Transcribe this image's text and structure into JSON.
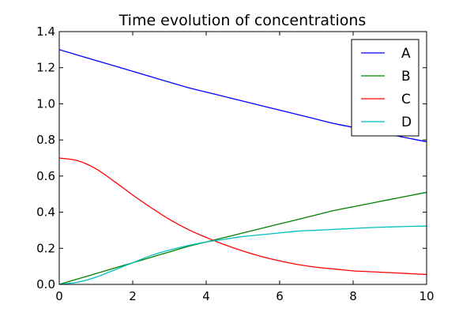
{
  "chart_data": {
    "type": "line",
    "title": "Time evolution of concentrations",
    "xlabel": "",
    "ylabel": "",
    "xlim": [
      0,
      10
    ],
    "ylim": [
      0,
      1.4
    ],
    "xticks": [
      0,
      2,
      4,
      6,
      8,
      10
    ],
    "yticks": [
      0.0,
      0.2,
      0.4,
      0.6,
      0.8,
      1.0,
      1.2,
      1.4
    ],
    "xtick_labels": [
      "0",
      "2",
      "4",
      "6",
      "8",
      "10"
    ],
    "ytick_labels": [
      "0.0",
      "0.2",
      "0.4",
      "0.6",
      "0.8",
      "1.0",
      "1.2",
      "1.4"
    ],
    "grid": false,
    "legend_position": "top-right",
    "x": [
      0,
      0.5,
      1,
      1.5,
      2,
      2.5,
      3,
      3.5,
      4,
      4.5,
      5,
      5.5,
      6,
      6.5,
      7,
      7.5,
      8,
      8.5,
      9,
      9.5,
      10
    ],
    "series": [
      {
        "name": "A",
        "color": "#0000ff",
        "values": [
          1.3,
          1.27,
          1.24,
          1.21,
          1.18,
          1.15,
          1.12,
          1.09,
          1.065,
          1.04,
          1.015,
          0.99,
          0.965,
          0.94,
          0.915,
          0.89,
          0.87,
          0.85,
          0.83,
          0.81,
          0.79
        ]
      },
      {
        "name": "B",
        "color": "#008000",
        "values": [
          0.0,
          0.03,
          0.06,
          0.09,
          0.12,
          0.15,
          0.18,
          0.21,
          0.235,
          0.26,
          0.285,
          0.31,
          0.335,
          0.36,
          0.385,
          0.41,
          0.43,
          0.45,
          0.47,
          0.49,
          0.51
        ]
      },
      {
        "name": "C",
        "color": "#ff0000",
        "values": [
          0.7,
          0.685,
          0.64,
          0.57,
          0.495,
          0.425,
          0.36,
          0.305,
          0.26,
          0.22,
          0.185,
          0.155,
          0.13,
          0.11,
          0.095,
          0.085,
          0.075,
          0.07,
          0.065,
          0.06,
          0.055
        ]
      },
      {
        "name": "D",
        "color": "#00bfbf",
        "values": [
          0.0,
          0.012,
          0.04,
          0.08,
          0.12,
          0.16,
          0.19,
          0.215,
          0.235,
          0.25,
          0.265,
          0.275,
          0.285,
          0.295,
          0.3,
          0.305,
          0.31,
          0.315,
          0.318,
          0.321,
          0.323
        ]
      }
    ]
  }
}
